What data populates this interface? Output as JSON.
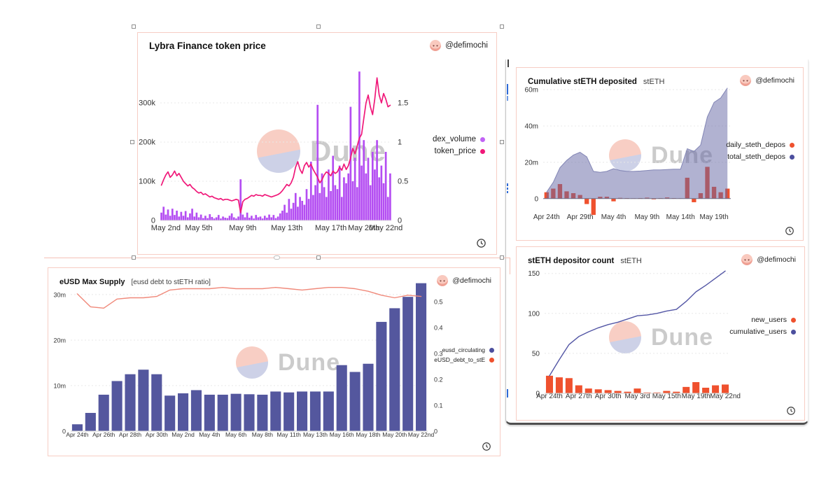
{
  "watermark": {
    "text": "Dune"
  },
  "chart_data": [
    {
      "type": "bar+line",
      "title": "Lybra Finance token price",
      "subtitle": "",
      "author": "@defimochi",
      "n": 105,
      "x_ticks": [
        {
          "label": "May 2nd",
          "i": 2
        },
        {
          "label": "May 5th",
          "i": 17
        },
        {
          "label": "May 9th",
          "i": 37
        },
        {
          "label": "May 13th",
          "i": 57
        },
        {
          "label": "May 17th",
          "i": 77
        },
        {
          "label": "May 20th",
          "i": 92
        },
        {
          "label": "May 22nd",
          "i": 102
        }
      ],
      "left_axis": {
        "min": 0,
        "max": 400,
        "unit": "k",
        "ticks": [
          {
            "label": "0",
            "v": 0
          },
          {
            "label": "100k",
            "v": 100
          },
          {
            "label": "200k",
            "v": 200
          },
          {
            "label": "300k",
            "v": 300
          }
        ]
      },
      "right_axis": {
        "min": 0,
        "max": 2,
        "ticks": [
          {
            "label": "0",
            "v": 0
          },
          {
            "label": "0.5",
            "v": 0.5
          },
          {
            "label": "1",
            "v": 1
          },
          {
            "label": "1.5",
            "v": 1.5
          }
        ]
      },
      "series": [
        {
          "name": "dex_volume",
          "kind": "bar",
          "axis": "left",
          "color": "#b44df2",
          "values": [
            20,
            35,
            15,
            28,
            12,
            30,
            14,
            25,
            10,
            22,
            12,
            24,
            8,
            18,
            30,
            10,
            20,
            8,
            15,
            6,
            12,
            6,
            16,
            9,
            5,
            8,
            14,
            5,
            10,
            7,
            6,
            12,
            18,
            8,
            5,
            10,
            105,
            15,
            8,
            20,
            7,
            12,
            5,
            14,
            8,
            10,
            5,
            12,
            7,
            15,
            8,
            14,
            6,
            10,
            18,
            25,
            40,
            20,
            55,
            30,
            45,
            70,
            35,
            60,
            50,
            40,
            80,
            55,
            150,
            65,
            90,
            295,
            70,
            120,
            85,
            60,
            130,
            75,
            165,
            90,
            80,
            140,
            60,
            110,
            95,
            120,
            290,
            100,
            160,
            85,
            380,
            140,
            205,
            120,
            160,
            90,
            175,
            130,
            205,
            110,
            140,
            95,
            175,
            60,
            120
          ]
        },
        {
          "name": "token_price",
          "kind": "line",
          "axis": "right",
          "color": "#f01879",
          "values": [
            0.45,
            0.52,
            0.58,
            0.62,
            0.55,
            0.58,
            0.63,
            0.57,
            0.6,
            0.55,
            0.5,
            0.47,
            0.44,
            0.46,
            0.42,
            0.4,
            0.37,
            0.35,
            0.36,
            0.33,
            0.34,
            0.32,
            0.3,
            0.31,
            0.29,
            0.28,
            0.27,
            0.28,
            0.26,
            0.27,
            0.27,
            0.26,
            0.25,
            0.26,
            0.27,
            0.26,
            0.1,
            0.24,
            0.27,
            0.28,
            0.3,
            0.32,
            0.31,
            0.33,
            0.32,
            0.32,
            0.31,
            0.33,
            0.32,
            0.31,
            0.3,
            0.31,
            0.32,
            0.33,
            0.35,
            0.38,
            0.42,
            0.46,
            0.44,
            0.48,
            0.55,
            0.68,
            0.75,
            0.65,
            0.6,
            0.7,
            0.74,
            0.68,
            0.72,
            0.65,
            0.6,
            0.55,
            0.48,
            0.52,
            0.58,
            0.62,
            0.6,
            0.57,
            0.63,
            0.6,
            0.62,
            0.68,
            0.64,
            0.72,
            0.65,
            0.7,
            0.8,
            0.92,
            0.85,
            0.95,
            1.05,
            1.1,
            1.3,
            1.5,
            1.6,
            1.45,
            1.35,
            1.55,
            1.82,
            1.6,
            1.5,
            1.62,
            1.55,
            1.45,
            1.47
          ]
        }
      ],
      "legend": [
        {
          "label": "dex_volume",
          "color": "#c163f5"
        },
        {
          "label": "token_price",
          "color": "#f01879"
        }
      ]
    },
    {
      "type": "bar+area",
      "title": "Cumulative stETH deposited",
      "subtitle": "stETH",
      "author": "@defimochi",
      "n": 28,
      "x_ticks": [
        {
          "label": "Apr 24th",
          "i": 0
        },
        {
          "label": "Apr 29th",
          "i": 5
        },
        {
          "label": "May 4th",
          "i": 10
        },
        {
          "label": "May 9th",
          "i": 15
        },
        {
          "label": "May 14th",
          "i": 20
        },
        {
          "label": "May 19th",
          "i": 25
        }
      ],
      "left_axis": {
        "min": -10.5,
        "max": 62,
        "unit": "m",
        "ticks": [
          {
            "label": "0",
            "v": 0
          },
          {
            "label": "20m",
            "v": 20
          },
          {
            "label": "40m",
            "v": 40
          },
          {
            "label": "60m",
            "v": 60
          }
        ]
      },
      "right_axis": null,
      "series": [
        {
          "name": "daily_steth_depos",
          "kind": "bar",
          "axis": "left",
          "color": "#ef512e",
          "values": [
            3.5,
            5.5,
            8,
            4,
            3,
            2,
            -3,
            -9,
            1,
            1,
            -1.5,
            0.4,
            0.3,
            0.2,
            0.3,
            0.5,
            -0.4,
            0.3,
            0.6,
            0.3,
            0.2,
            11.5,
            -2,
            3,
            17.5,
            6.5,
            3.5,
            5.5
          ]
        },
        {
          "name": "total_steth_depos",
          "kind": "area",
          "axis": "left",
          "color": "#8285b5",
          "fill": "rgba(99,102,164,0.5)",
          "values": [
            3.5,
            9,
            17,
            21,
            24,
            25.5,
            23,
            15,
            14.5,
            15,
            16.5,
            15.5,
            15,
            15,
            15.2,
            15.5,
            15.8,
            15.8,
            16,
            16.2,
            16.2,
            27.5,
            26,
            29.5,
            45,
            53,
            55.5,
            61
          ]
        }
      ],
      "legend": [
        {
          "label": "daily_steth_depos",
          "color": "#ef512e"
        },
        {
          "label": "total_steth_depos",
          "color": "#4c4f9e"
        }
      ]
    },
    {
      "type": "bar+line",
      "title": "eUSD Max Supply",
      "subtitle": "[eusd debt to stETH ratio]",
      "author": "@defimochi",
      "n": 27,
      "x_ticks": [
        {
          "label": "Apr 24th",
          "i": 0
        },
        {
          "label": "Apr 26th",
          "i": 2
        },
        {
          "label": "Apr 28th",
          "i": 4
        },
        {
          "label": "Apr 30th",
          "i": 6
        },
        {
          "label": "May 2nd",
          "i": 8
        },
        {
          "label": "May 4th",
          "i": 10
        },
        {
          "label": "May 6th",
          "i": 12
        },
        {
          "label": "May 8th",
          "i": 14
        },
        {
          "label": "May 11th",
          "i": 16
        },
        {
          "label": "May 13th",
          "i": 18
        },
        {
          "label": "May 16th",
          "i": 20
        },
        {
          "label": "May 18th",
          "i": 22
        },
        {
          "label": "May 20th",
          "i": 24
        },
        {
          "label": "May 22nd",
          "i": 26
        }
      ],
      "left_axis": {
        "min": 0,
        "max": 32.6,
        "unit": "m",
        "ticks": [
          {
            "label": "0",
            "v": 0
          },
          {
            "label": "10m",
            "v": 10
          },
          {
            "label": "20m",
            "v": 20
          },
          {
            "label": "30m",
            "v": 30
          }
        ]
      },
      "right_axis": {
        "min": 0,
        "max": 0.573,
        "ticks": [
          {
            "label": "0",
            "v": 0
          },
          {
            "label": "0.1",
            "v": 0.1
          },
          {
            "label": "0.2",
            "v": 0.2
          },
          {
            "label": "0.3",
            "v": 0.3
          },
          {
            "label": "0.4",
            "v": 0.4
          },
          {
            "label": "0.5",
            "v": 0.5
          }
        ]
      },
      "series": [
        {
          "name": "eusd_circulating",
          "kind": "bar",
          "axis": "left",
          "color": "#54579e",
          "values": [
            1.5,
            4,
            8,
            11,
            12.5,
            13.5,
            12.5,
            7.8,
            8.3,
            9,
            8,
            8,
            8.2,
            8.1,
            8,
            8.7,
            8.5,
            8.7,
            8.7,
            8.7,
            14.5,
            13,
            14.8,
            24,
            27,
            29.5,
            32.5
          ]
        },
        {
          "name": "eUSD_debt_to_stE",
          "kind": "line",
          "axis": "right",
          "color": "#f0897a",
          "values": [
            0.53,
            0.48,
            0.475,
            0.51,
            0.515,
            0.515,
            0.52,
            0.545,
            0.55,
            0.55,
            0.55,
            0.555,
            0.55,
            0.55,
            0.55,
            0.555,
            0.55,
            0.545,
            0.55,
            0.555,
            0.555,
            0.55,
            0.54,
            0.525,
            0.515,
            0.525,
            0.52
          ]
        }
      ],
      "legend": [
        {
          "label": "eusd_circulating",
          "color": "#4c4f9e"
        },
        {
          "label": "eUSD_debt_to_stE",
          "color": "#ef512e"
        }
      ]
    },
    {
      "type": "bar+line",
      "title": "stETH depositor count",
      "subtitle": "stETH",
      "author": "@defimochi",
      "n": 19,
      "x_ticks": [
        {
          "label": "Apr 24th",
          "i": 0
        },
        {
          "label": "Apr 27th",
          "i": 3
        },
        {
          "label": "Apr 30th",
          "i": 6
        },
        {
          "label": "May 3rd",
          "i": 9
        },
        {
          "label": "May 15th",
          "i": 12
        },
        {
          "label": "May 19th",
          "i": 15
        },
        {
          "label": "May 22nd",
          "i": 18
        }
      ],
      "left_axis": {
        "min": 0,
        "max": 155,
        "unit": "",
        "ticks": [
          {
            "label": "0",
            "v": 0
          },
          {
            "label": "50",
            "v": 50
          },
          {
            "label": "100",
            "v": 100
          },
          {
            "label": "150",
            "v": 150
          }
        ]
      },
      "right_axis": null,
      "series": [
        {
          "name": "new_users",
          "kind": "bar",
          "axis": "left",
          "color": "#ef512e",
          "values": [
            22,
            20,
            19,
            10,
            6,
            5,
            4,
            3,
            2,
            6,
            1,
            1,
            3,
            2,
            8,
            14,
            7,
            10,
            11
          ]
        },
        {
          "name": "cumulative_users",
          "kind": "line",
          "axis": "left",
          "color": "#5356a5",
          "values": [
            22,
            42,
            61,
            71,
            77,
            82,
            86,
            89,
            93,
            97,
            98,
            100,
            103,
            105,
            115,
            127,
            135,
            144,
            153
          ]
        }
      ],
      "legend": [
        {
          "label": "new_users",
          "color": "#ef512e"
        },
        {
          "label": "cumulative_users",
          "color": "#4c4f9e"
        }
      ]
    }
  ]
}
